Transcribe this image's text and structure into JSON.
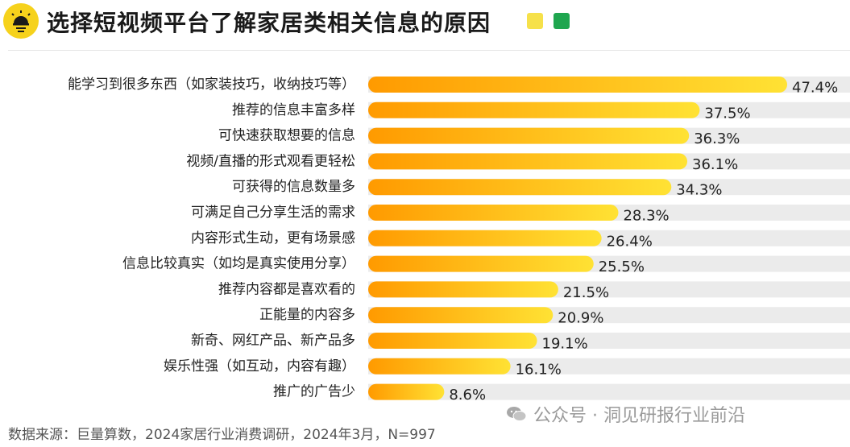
{
  "header": {
    "title": "选择短视频平台了解家居类相关信息的原因",
    "logo_icon": "lightbulb-icon",
    "accent_colors": [
      "#f6e14a",
      "#1fa64f"
    ]
  },
  "chart_data": {
    "type": "bar",
    "orientation": "horizontal",
    "categories": [
      "能学习到很多东西（如家装技巧，收纳技巧等）",
      "推荐的信息丰富多样",
      "可快速获取想要的信息",
      "视频/直播的形式观看更轻松",
      "可获得的信息数量多",
      "可满足自己分享生活的需求",
      "内容形式生动，更有场景感",
      "信息比较真实（如均是真实使用分享）",
      "推荐内容都是喜欢看的",
      "正能量的内容多",
      "新奇、网红产品、新产品多",
      "娱乐性强（如互动，内容有趣）",
      "推广的广告少"
    ],
    "values": [
      47.4,
      37.5,
      36.3,
      36.1,
      34.3,
      28.3,
      26.4,
      25.5,
      21.5,
      20.9,
      19.1,
      16.1,
      8.6
    ],
    "value_labels": [
      "47.4%",
      "37.5%",
      "36.3%",
      "36.1%",
      "34.3%",
      "28.3%",
      "26.4%",
      "25.5%",
      "21.5%",
      "20.9%",
      "19.1%",
      "16.1%",
      "8.6%"
    ],
    "xlim": [
      0,
      47.4
    ],
    "grid": false,
    "bar_gradient": [
      "#ff9a00",
      "#ffe234"
    ],
    "track_color": "#ebebeb"
  },
  "footer": {
    "source": "数据来源：巨量算数，2024家居行业消费调研，2024年3月，N=997"
  },
  "watermark": {
    "text": "公众号 · 洞见研报行业前沿",
    "icon": "wechat-icon"
  }
}
